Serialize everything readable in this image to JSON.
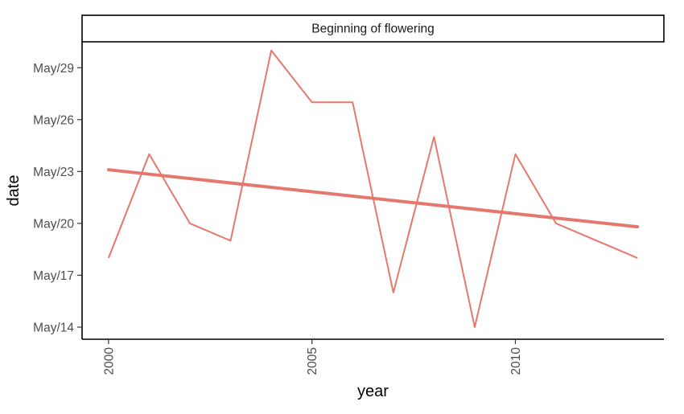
{
  "chart_data": {
    "type": "line",
    "title": "",
    "facet_label": "Beginning of flowering",
    "xlabel": "year",
    "ylabel": "date",
    "x_ticks": [
      2000,
      2005,
      2010
    ],
    "y_ticks": [
      "May/14",
      "May/17",
      "May/20",
      "May/23",
      "May/26",
      "May/29"
    ],
    "x_range": [
      1999.35,
      2013.65
    ],
    "y_range": [
      "2000-05-13.3",
      "2000-05-30.5"
    ],
    "grid": false,
    "legend": "none",
    "series": [
      {
        "color": "#e5786d",
        "x": [
          2000,
          2001,
          2002,
          2003,
          2004,
          2005,
          2006,
          2007,
          2008,
          2009,
          2010,
          2011,
          2012,
          2013
        ],
        "y": [
          "May/18",
          "May/24",
          "May/20",
          "May/19",
          "May/30",
          "May/27",
          "May/27",
          "May/16",
          "May/25",
          "May/14",
          "May/24",
          "May/20",
          "May/19",
          "May/18"
        ]
      }
    ],
    "trend_line": {
      "color": "#e5786d",
      "x": [
        2000,
        2013
      ],
      "y": [
        "May/23.1",
        "May/19.8"
      ]
    }
  }
}
